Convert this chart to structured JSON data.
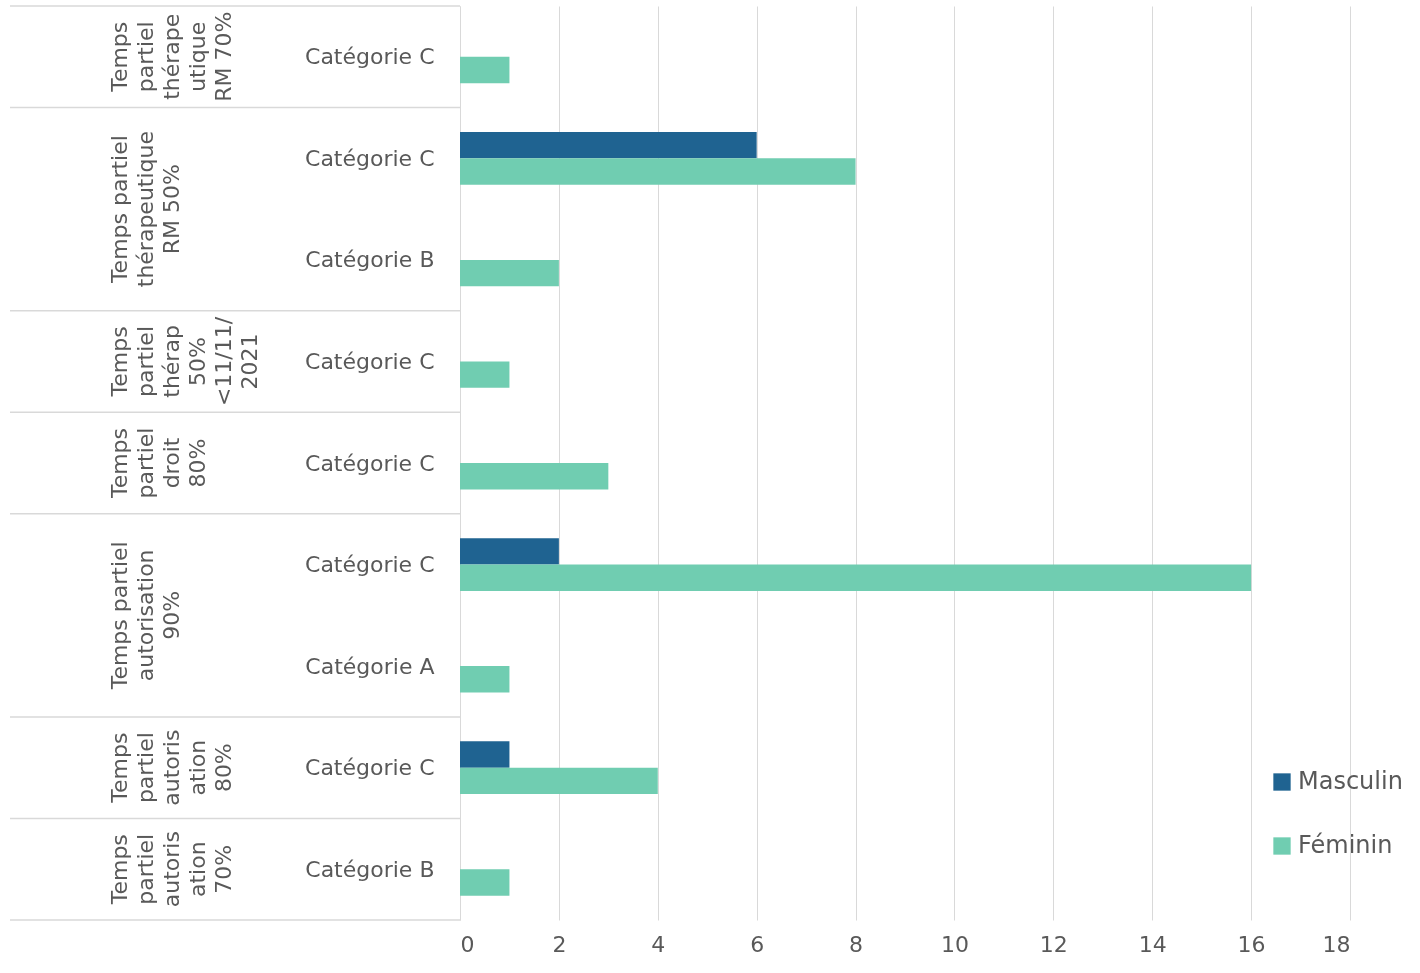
{
  "chart_data": {
    "type": "bar",
    "orientation": "horizontal",
    "categories": [
      "Catégorie C",
      "Catégorie C",
      "Catégorie B",
      "Catégorie C",
      "Catégorie C",
      "Catégorie C",
      "Catégorie A",
      "Catégorie C",
      "Catégorie B"
    ],
    "series": [
      {
        "name": "Masculin",
        "color": "#1f6391",
        "values": [
          null,
          6,
          null,
          null,
          null,
          2,
          null,
          1,
          null
        ]
      },
      {
        "name": "Féminin",
        "color": "#70cdb1",
        "values": [
          1,
          8,
          2,
          1,
          3,
          16,
          1,
          4,
          1
        ]
      }
    ],
    "xlim": [
      0,
      18
    ],
    "xticks": [
      0,
      2,
      4,
      6,
      8,
      10,
      12,
      14,
      16,
      18
    ],
    "grid": "x",
    "legend": "bottom right",
    "annotations": [
      "Temps partiel thérapeutique RM 70%",
      "Temps partiel thérapeutique RM 50%",
      "Temps partiel thérap 50% <11/11/2021",
      "Temps partiel droit 80%",
      "Temps partiel autorisation 90%",
      "Temps partiel autorisation 80%",
      "Temps partiel autorisation 70%"
    ]
  }
}
